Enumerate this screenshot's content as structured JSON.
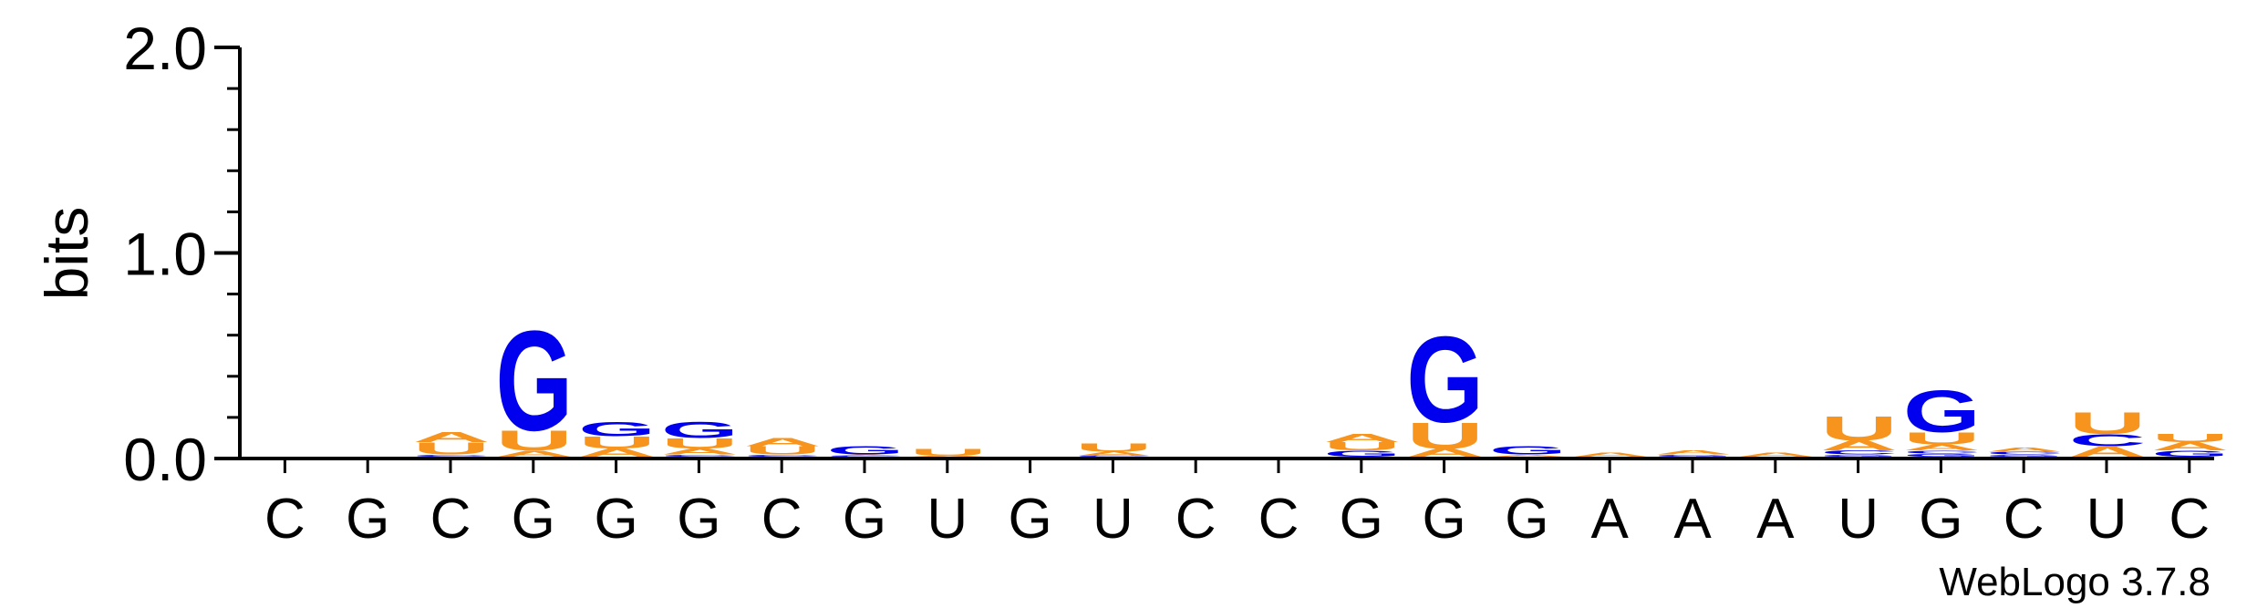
{
  "chart_data": {
    "type": "sequence-logo",
    "ylabel": "bits",
    "ylim": [
      0,
      2.0
    ],
    "yticks": [
      "0.0",
      "1.0",
      "2.0"
    ],
    "positions": [
      "C",
      "G",
      "C",
      "G",
      "G",
      "G",
      "C",
      "G",
      "U",
      "G",
      "U",
      "C",
      "C",
      "G",
      "G",
      "G",
      "A",
      "A",
      "A",
      "U",
      "G",
      "C",
      "U",
      "C"
    ],
    "colors": {
      "A": "#f7941d",
      "U": "#f7941d",
      "G": "#0000ee",
      "C": "#0000ee"
    },
    "stacks": [
      [],
      [],
      [
        {
          "l": "C",
          "v": 0.01
        },
        {
          "l": "U",
          "v": 0.06
        },
        {
          "l": "A",
          "v": 0.05
        }
      ],
      [
        {
          "l": "A",
          "v": 0.03
        },
        {
          "l": "U",
          "v": 0.1
        },
        {
          "l": "G",
          "v": 0.5
        }
      ],
      [
        {
          "l": "A",
          "v": 0.04
        },
        {
          "l": "U",
          "v": 0.06
        },
        {
          "l": "G",
          "v": 0.07
        }
      ],
      [
        {
          "l": "C",
          "v": 0.01
        },
        {
          "l": "A",
          "v": 0.03
        },
        {
          "l": "U",
          "v": 0.05
        },
        {
          "l": "G",
          "v": 0.08
        }
      ],
      [
        {
          "l": "C",
          "v": 0.01
        },
        {
          "l": "U",
          "v": 0.04
        },
        {
          "l": "A",
          "v": 0.04
        }
      ],
      [
        {
          "l": "C",
          "v": 0.005
        },
        {
          "l": "A",
          "v": 0.005
        },
        {
          "l": "G",
          "v": 0.04
        }
      ],
      [
        {
          "l": "A",
          "v": 0.005
        },
        {
          "l": "U",
          "v": 0.035
        }
      ],
      [],
      [
        {
          "l": "C",
          "v": 0.005
        },
        {
          "l": "A",
          "v": 0.02
        },
        {
          "l": "U",
          "v": 0.04
        }
      ],
      [],
      [],
      [
        {
          "l": "G",
          "v": 0.03
        },
        {
          "l": "U",
          "v": 0.04
        },
        {
          "l": "A",
          "v": 0.04
        }
      ],
      [
        {
          "l": "A",
          "v": 0.04
        },
        {
          "l": "U",
          "v": 0.13
        },
        {
          "l": "G",
          "v": 0.43
        }
      ],
      [
        {
          "l": "A",
          "v": 0.01
        },
        {
          "l": "G",
          "v": 0.04
        }
      ],
      [
        {
          "l": "A",
          "v": 0.02
        }
      ],
      [
        {
          "l": "G",
          "v": 0.01
        },
        {
          "l": "A",
          "v": 0.02
        }
      ],
      [
        {
          "l": "A",
          "v": 0.02
        }
      ],
      [
        {
          "l": "G",
          "v": 0.01
        },
        {
          "l": "C",
          "v": 0.02
        },
        {
          "l": "A",
          "v": 0.05
        },
        {
          "l": "U",
          "v": 0.12
        }
      ],
      [
        {
          "l": "G",
          "v": 0.015
        },
        {
          "l": "C",
          "v": 0.015
        },
        {
          "l": "A",
          "v": 0.03
        },
        {
          "l": "U",
          "v": 0.06
        },
        {
          "l": "G",
          "v": 0.21
        }
      ],
      [
        {
          "l": "G",
          "v": 0.01
        },
        {
          "l": "C",
          "v": 0.015
        },
        {
          "l": "A",
          "v": 0.02
        }
      ],
      [
        {
          "l": "A",
          "v": 0.05
        },
        {
          "l": "C",
          "v": 0.06
        },
        {
          "l": "U",
          "v": 0.11
        }
      ],
      [
        {
          "l": "G",
          "v": 0.03
        },
        {
          "l": "A",
          "v": 0.04
        },
        {
          "l": "U",
          "v": 0.04
        }
      ]
    ]
  },
  "credit": "WebLogo 3.7.8"
}
